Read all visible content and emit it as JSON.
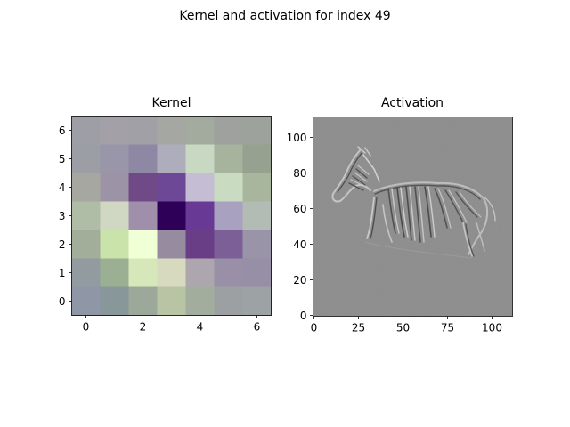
{
  "figure": {
    "suptitle": "Kernel and activation for index 49"
  },
  "chart_data": [
    {
      "type": "heatmap",
      "title": "Kernel",
      "rows": 7,
      "cols": 7,
      "x_ticks": [
        0,
        2,
        4,
        6
      ],
      "y_ticks": [
        0,
        1,
        2,
        3,
        4,
        5,
        6
      ],
      "xlim": [
        -0.5,
        6.5
      ],
      "ylim": [
        6.5,
        -0.5
      ],
      "colors": [
        [
          "#9e9fa6",
          "#a3a0a7",
          "#a0a0a6",
          "#a5a7a2",
          "#a3aa9e",
          "#9ea19d",
          "#9ea29c"
        ],
        [
          "#9c9ea6",
          "#9896a8",
          "#8f88a5",
          "#aeadbb",
          "#c8d8c3",
          "#a6b39d",
          "#97a18f"
        ],
        [
          "#a6a7a0",
          "#9c93a7",
          "#6f4a87",
          "#6c4896",
          "#c4bdd4",
          "#c9dcc1",
          "#a9b69e"
        ],
        [
          "#afbca6",
          "#d0d8c3",
          "#a08fab",
          "#2f0058",
          "#693a95",
          "#a8a2c0",
          "#b2bbb4"
        ],
        [
          "#a2ae99",
          "#c9e3aa",
          "#f1ffd7",
          "#978ba0",
          "#6a3e86",
          "#7b5f96",
          "#9a94a8"
        ],
        [
          "#919ba0",
          "#9bb093",
          "#d6e7b9",
          "#d8dabf",
          "#ada6ae",
          "#998fa6",
          "#968fa6"
        ],
        [
          "#8f96a6",
          "#87979a",
          "#9ca899",
          "#b9c4a5",
          "#a3ad9d",
          "#9ca0a2",
          "#9da2a5"
        ]
      ]
    },
    {
      "type": "heatmap",
      "title": "Activation",
      "rows": 112,
      "cols": 112,
      "x_ticks": [
        0,
        25,
        50,
        75,
        100
      ],
      "y_ticks": [
        0,
        20,
        40,
        60,
        80,
        100
      ],
      "xlim": [
        -0.5,
        111.5
      ],
      "ylim": [
        111.5,
        -0.5
      ],
      "background": "#8c8c8c"
    }
  ]
}
